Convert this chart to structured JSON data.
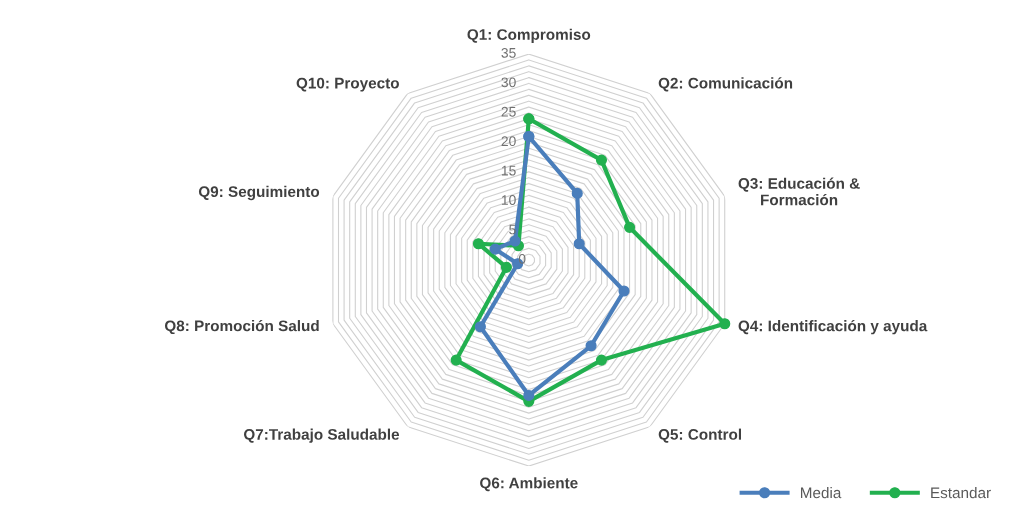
{
  "chart_data": {
    "type": "radar",
    "categories": [
      "Q1: Compromiso",
      "Q2: Comunicación",
      "Q3: Educación &\nFormación",
      "Q4: Identificación y ayuda",
      "Q5: Control",
      "Q6: Ambiente",
      "Q7:Trabajo Saludable",
      "Q8: Promoción Salud",
      "Q9: Seguimiento",
      "Q10: Proyecto"
    ],
    "series": [
      {
        "name": "Media",
        "color": "#4a7ebb",
        "values": [
          21,
          14,
          9,
          17,
          18,
          23,
          14,
          2,
          6,
          4
        ]
      },
      {
        "name": "Estandar",
        "color": "#22b04f",
        "values": [
          24,
          21,
          18,
          35,
          21,
          24,
          21,
          4,
          9,
          3
        ]
      }
    ],
    "ylim": [
      0,
      35
    ],
    "yticks": [
      0,
      5,
      10,
      15,
      20,
      25,
      30,
      35
    ],
    "grid": true,
    "legend": "bottom right",
    "marker": "circle",
    "line_style": "solid"
  }
}
